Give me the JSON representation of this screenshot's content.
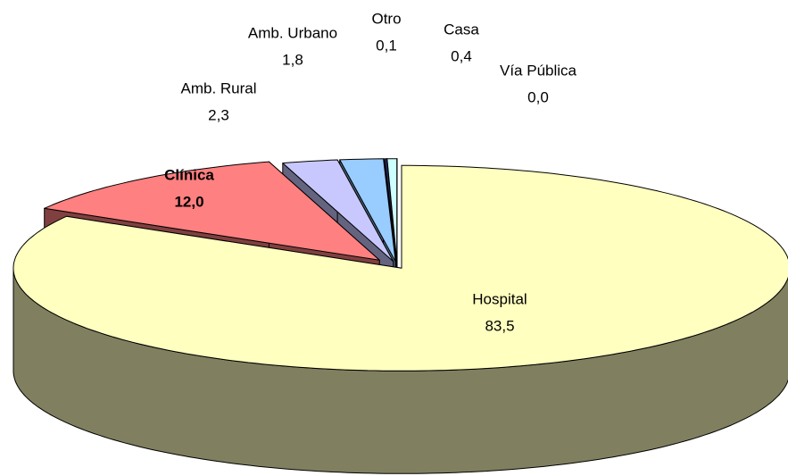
{
  "chart_data": {
    "type": "pie",
    "categories": [
      "Hospital",
      "Clínica",
      "Amb.  Rural",
      "Amb. Urbano",
      "Otro",
      "Casa",
      "Vía Pública"
    ],
    "values": [
      83.5,
      12.0,
      2.3,
      1.8,
      0.1,
      0.4,
      0.0
    ],
    "value_labels": [
      "83,5",
      "12,0",
      "2,3",
      "1,8",
      "0,1",
      "0,4",
      "0,0"
    ],
    "colors": [
      "#FFFFC0",
      "#FF8080",
      "#C8C8FF",
      "#99CCFF",
      "#2A2A6A",
      "#CCFFFF",
      "#FFFFFF"
    ]
  }
}
